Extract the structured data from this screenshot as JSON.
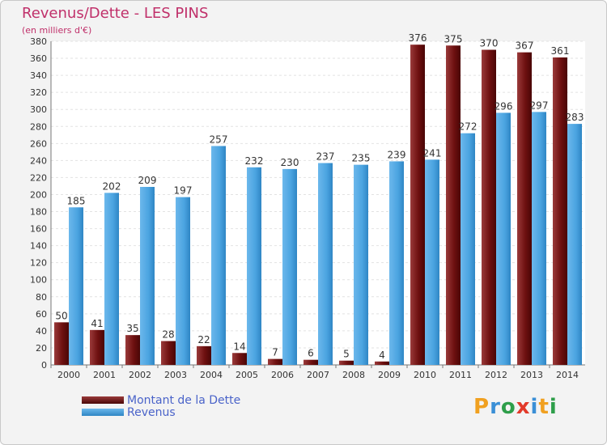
{
  "chart_data": {
    "type": "bar",
    "title": "Revenus/Dette - LES PINS",
    "subtitle": "(en milliers d'€)",
    "categories": [
      "2000",
      "2001",
      "2002",
      "2003",
      "2004",
      "2005",
      "2006",
      "2007",
      "2008",
      "2009",
      "2010",
      "2011",
      "2012",
      "2013",
      "2014"
    ],
    "series": [
      {
        "name": "Montant de la Dette",
        "color": "#7a1414",
        "values": [
          50,
          41,
          35,
          28,
          22,
          14,
          7,
          6,
          5,
          4,
          376,
          375,
          370,
          367,
          361
        ]
      },
      {
        "name": "Revenus",
        "color": "#4aa3e0",
        "values": [
          185,
          202,
          209,
          197,
          257,
          232,
          230,
          237,
          235,
          239,
          241,
          272,
          296,
          297,
          283
        ]
      }
    ],
    "ylim": [
      0,
      380
    ],
    "yticks": [
      0,
      20,
      40,
      60,
      80,
      100,
      120,
      140,
      160,
      180,
      200,
      220,
      240,
      260,
      280,
      300,
      320,
      340,
      360,
      380
    ],
    "grid": true,
    "legend_position": "bottom-left"
  },
  "brand": {
    "text": "Proxiti",
    "letter_colors": [
      "#f0a020",
      "#3a8fd6",
      "#2e9e4a",
      "#e23a2a",
      "#3a8fd6",
      "#f0a020",
      "#2e9e4a"
    ]
  }
}
